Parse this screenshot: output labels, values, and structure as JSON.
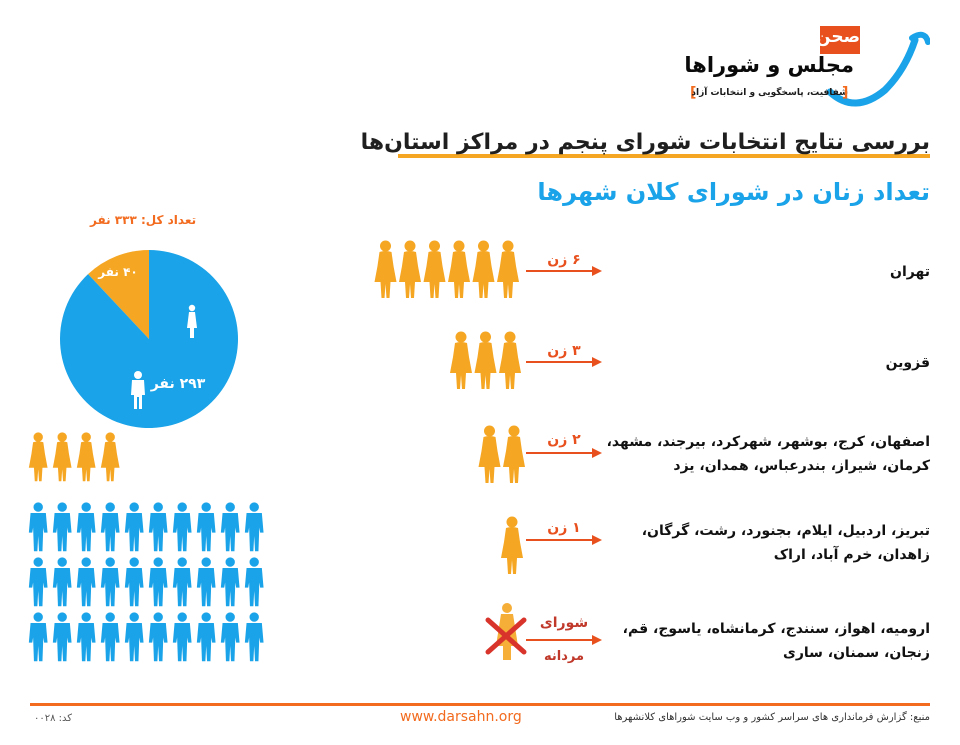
{
  "logo": {
    "red_text": "صحن",
    "title": "مجلس و شوراها",
    "tagline": "شفافیت، پاسخگویی و انتخابات آزاد"
  },
  "title": "بررسی نتایج انتخابات شورای پنجم در مراکز استان‌ها",
  "subtitle": "تعداد زنان در شورای کلان شهرها",
  "pie": {
    "total_label": "تعداد کل: ۳۳۳ نفر",
    "women_label": "۴۰ نفر",
    "men_label": "۲۹۳ نفر"
  },
  "chart_data": {
    "type": "pie",
    "categories": [
      "زن",
      "مرد"
    ],
    "values": [
      40,
      293
    ]
  },
  "rows": [
    {
      "count_label": "۶ زن",
      "women": 6,
      "cities_line1": "تهران",
      "cities_line2": ""
    },
    {
      "count_label": "۳ زن",
      "women": 3,
      "cities_line1": "قزوین",
      "cities_line2": ""
    },
    {
      "count_label": "۲ زن",
      "women": 2,
      "cities_line1": "اصفهان، کرج، بوشهر، شهرکرد، بیرجند، مشهد،",
      "cities_line2": "کرمان، شیراز، بندرعباس، همدان، یزد"
    },
    {
      "count_label": "۱ زن",
      "women": 1,
      "cities_line1": "تبریز، اردبیل، ایلام، بجنورد، رشت، گرگان،",
      "cities_line2": "زاهدان، خرم آباد، اراک"
    },
    {
      "count_label_1": "شورای",
      "count_label_2": "مردانه",
      "women": 0,
      "cities_line1": "ارومیه، اهواز، سنندج، کرمانشاه، یاسوج، قم،",
      "cities_line2": "زنجان، سمنان، ساری"
    }
  ],
  "footer": {
    "source": "منبع: گزارش فرمانداری های سراسر کشور و وب سایت شوراهای کلانشهرها",
    "url": "www.darsahn.org",
    "code": "کد: ۰۰۲۸"
  },
  "colors": {
    "orange": "#f5a623",
    "blue": "#1aa3e8",
    "accent": "#f26b1f",
    "red": "#e8501d"
  }
}
